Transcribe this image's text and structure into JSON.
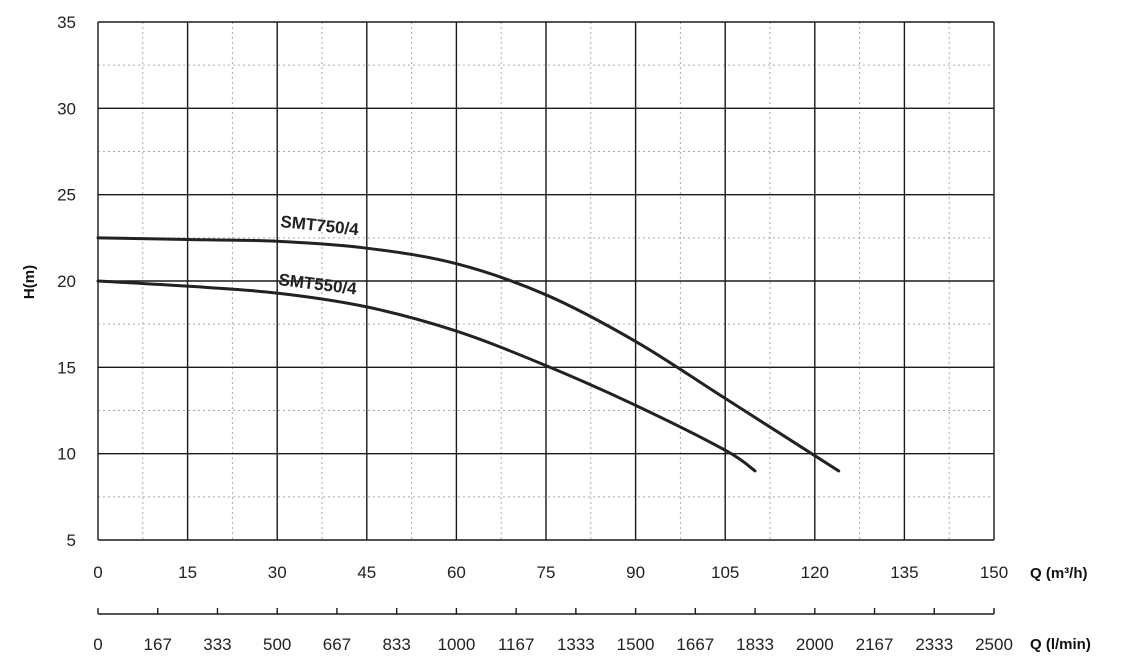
{
  "chart_data": {
    "type": "line",
    "ylabel": "H(m)",
    "xlabel": "Q (m³/h)",
    "x2label": "Q (l/min)",
    "xlim": [
      0,
      150
    ],
    "ylim": [
      5,
      35
    ],
    "x_ticks": [
      0,
      15,
      30,
      45,
      60,
      75,
      90,
      105,
      120,
      135,
      150
    ],
    "y_ticks": [
      5,
      10,
      15,
      20,
      25,
      30,
      35
    ],
    "x2_ticks": [
      "0",
      "167",
      "333",
      "500",
      "667",
      "833",
      "1000",
      "1167",
      "1333",
      "1500",
      "1667",
      "1833",
      "2000",
      "2167",
      "2333",
      "2500"
    ],
    "grid": true,
    "series": [
      {
        "name": "SMT750/4",
        "x": [
          0,
          15,
          30,
          45,
          60,
          75,
          90,
          105,
          124
        ],
        "y": [
          22.5,
          22.4,
          22.3,
          21.9,
          21.0,
          19.2,
          16.5,
          13.2,
          9.0
        ]
      },
      {
        "name": "SMT550/4",
        "x": [
          0,
          15,
          30,
          45,
          60,
          75,
          90,
          105,
          110
        ],
        "y": [
          20.0,
          19.7,
          19.3,
          18.5,
          17.1,
          15.1,
          12.8,
          10.2,
          9.0
        ]
      }
    ]
  },
  "style": {
    "line_color": "#222222",
    "major_grid_color": "#1a1a1a",
    "minor_grid_color": "#aaaaaa"
  }
}
